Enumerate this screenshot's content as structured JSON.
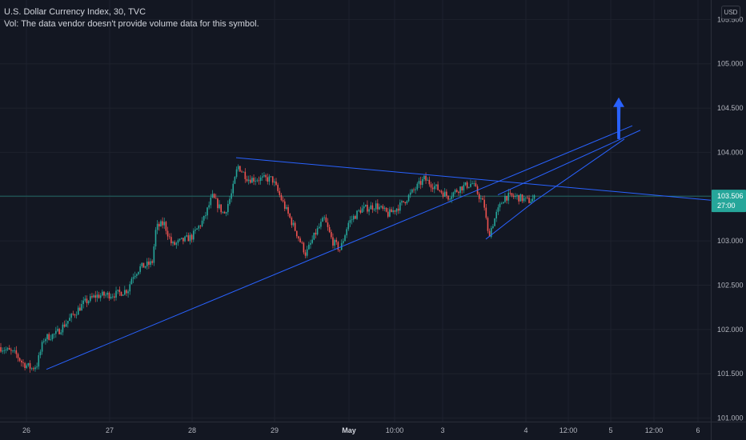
{
  "legend": {
    "title": "U.S. Dollar Currency Index, 30, TVC",
    "volume_note": "Vol: The data vendor doesn't provide volume data for this symbol."
  },
  "currency": "USD",
  "last_price": {
    "value": "103.506",
    "countdown": "27:00"
  },
  "colors": {
    "background": "#131722",
    "up": "#26a69a",
    "down": "#ef5350",
    "trendline": "#2962ff",
    "arrow": "#2962ff",
    "price_line": "#26a69a"
  },
  "chart_data": {
    "type": "candlestick",
    "title": "U.S. Dollar Currency Index, 30, TVC",
    "interval": "30",
    "y_axis": {
      "ticks": [
        "105.500",
        "105.000",
        "104.500",
        "104.000",
        "103.500",
        "103.000",
        "102.500",
        "102.000",
        "101.500",
        "101.000"
      ],
      "ylim": [
        100.96,
        105.72
      ]
    },
    "x_axis": {
      "ticks": [
        "26",
        "27",
        "28",
        "29",
        "May",
        "10:00",
        "3",
        "4",
        "12:00",
        "5",
        "12:00",
        "6"
      ]
    },
    "waypoints": [
      [
        0,
        101.8
      ],
      [
        20,
        101.72
      ],
      [
        28,
        101.62
      ],
      [
        40,
        101.56
      ],
      [
        46,
        101.6
      ],
      [
        55,
        101.9
      ],
      [
        70,
        101.95
      ],
      [
        90,
        102.15
      ],
      [
        105,
        102.3
      ],
      [
        120,
        102.38
      ],
      [
        145,
        102.4
      ],
      [
        160,
        102.45
      ],
      [
        165,
        102.6
      ],
      [
        175,
        102.7
      ],
      [
        190,
        102.75
      ],
      [
        195,
        103.15
      ],
      [
        205,
        103.2
      ],
      [
        215,
        102.95
      ],
      [
        240,
        103.05
      ],
      [
        255,
        103.25
      ],
      [
        265,
        103.5
      ],
      [
        280,
        103.3
      ],
      [
        290,
        103.55
      ],
      [
        297,
        103.85
      ],
      [
        310,
        103.7
      ],
      [
        340,
        103.7
      ],
      [
        355,
        103.4
      ],
      [
        370,
        103.1
      ],
      [
        382,
        102.85
      ],
      [
        395,
        103.1
      ],
      [
        405,
        103.25
      ],
      [
        415,
        103.0
      ],
      [
        425,
        102.9
      ],
      [
        435,
        103.2
      ],
      [
        450,
        103.35
      ],
      [
        470,
        103.4
      ],
      [
        485,
        103.3
      ],
      [
        500,
        103.4
      ],
      [
        515,
        103.55
      ],
      [
        530,
        103.7
      ],
      [
        545,
        103.6
      ],
      [
        560,
        103.5
      ],
      [
        575,
        103.6
      ],
      [
        590,
        103.65
      ],
      [
        605,
        103.4
      ],
      [
        610,
        103.05
      ],
      [
        620,
        103.3
      ],
      [
        630,
        103.5
      ],
      [
        645,
        103.5
      ],
      [
        660,
        103.45
      ],
      [
        668,
        103.48
      ]
    ],
    "last_value": 103.506,
    "trendlines": [
      {
        "name": "support",
        "points": [
          [
            58,
            101.55
          ],
          [
            790,
            104.3
          ]
        ]
      },
      {
        "name": "resistance",
        "points": [
          [
            295,
            103.94
          ],
          [
            888,
            103.46
          ]
        ]
      },
      {
        "name": "wedge-upper",
        "points": [
          [
            622,
            103.52
          ],
          [
            800,
            104.25
          ]
        ]
      },
      {
        "name": "wedge-lower",
        "points": [
          [
            607,
            103.02
          ],
          [
            668,
            103.45
          ]
        ]
      },
      {
        "name": "projection",
        "points": [
          [
            668,
            103.45
          ],
          [
            780,
            104.15
          ]
        ]
      }
    ],
    "annotation": {
      "type": "arrow-up",
      "at": [
        773,
        104.15
      ],
      "to": [
        773,
        104.62
      ]
    }
  }
}
